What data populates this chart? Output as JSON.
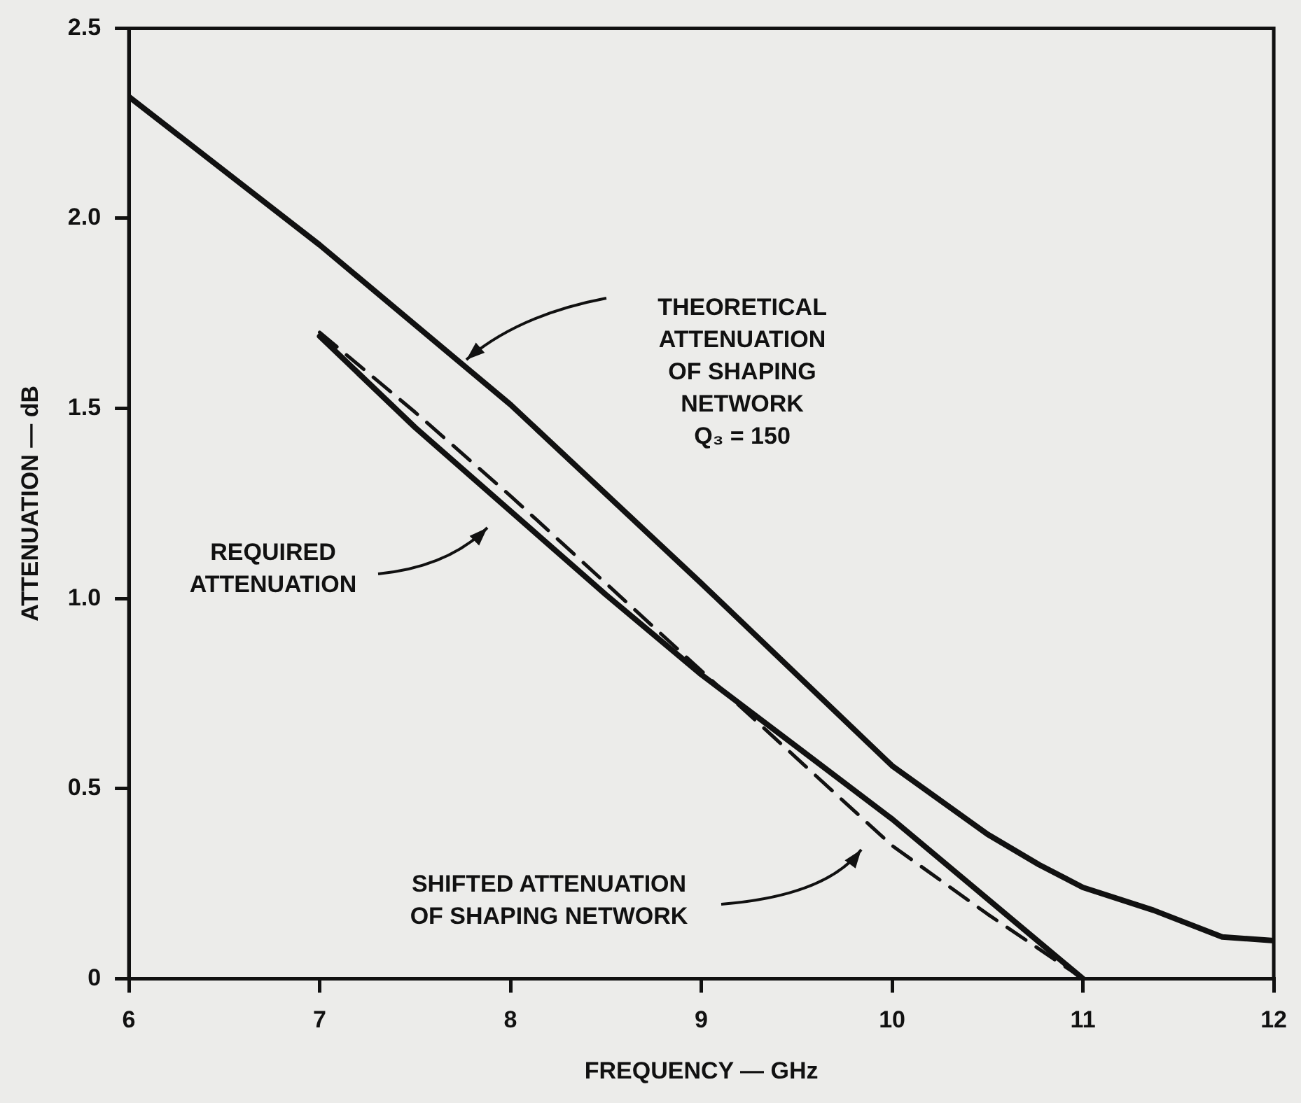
{
  "chart_data": {
    "type": "line",
    "xlabel": "FREQUENCY — GHz",
    "ylabel": "ATTENUATION — dB",
    "xlim": [
      6,
      12
    ],
    "xticks": [
      6,
      7,
      8,
      9,
      10,
      11,
      12
    ],
    "ylim": [
      0,
      2.5
    ],
    "yticks": [
      0,
      {
        "value": 0.5,
        "label": "0.5"
      },
      {
        "value": 1,
        "label": "1.0"
      },
      {
        "value": 1.5,
        "label": "1.5"
      },
      {
        "value": 2,
        "label": "2.0"
      },
      {
        "value": 2.5,
        "label": "2.5"
      }
    ],
    "grid": false,
    "legend": false,
    "marker": "none",
    "series": [
      {
        "color": "#111111",
        "line_style": "solid",
        "x": [
          6,
          7,
          8,
          9,
          9.5,
          10,
          10.5,
          10.77,
          11,
          11.37,
          11.73,
          12
        ],
        "values": [
          2.32,
          1.93,
          1.51,
          1.04,
          0.8,
          0.56,
          0.38,
          0.3,
          0.24,
          0.18,
          0.11,
          0.1
        ]
      },
      {
        "color": "#111111",
        "line_style": "solid",
        "x": [
          7,
          7.5,
          8,
          8.5,
          9,
          9.5,
          10,
          10.5,
          11
        ],
        "values": [
          1.69,
          1.45,
          1.23,
          1.01,
          0.8,
          0.61,
          0.42,
          0.21,
          0
        ]
      },
      {
        "color": "#111111",
        "line_style": "dashed",
        "x": [
          7,
          7.5,
          8,
          8.5,
          9,
          9.5,
          10,
          10.5,
          11
        ],
        "values": [
          1.7,
          1.49,
          1.27,
          1.04,
          0.81,
          0.58,
          0.35,
          0.17,
          0
        ]
      }
    ],
    "annotations": [
      "THEORETICAL\nATTENUATION\nOF SHAPING\nNETWORK\nQ₃ = 150",
      "REQUIRED\nATTENUATION",
      "SHIFTED ATTENUATION\nOF SHAPING NETWORK"
    ]
  }
}
